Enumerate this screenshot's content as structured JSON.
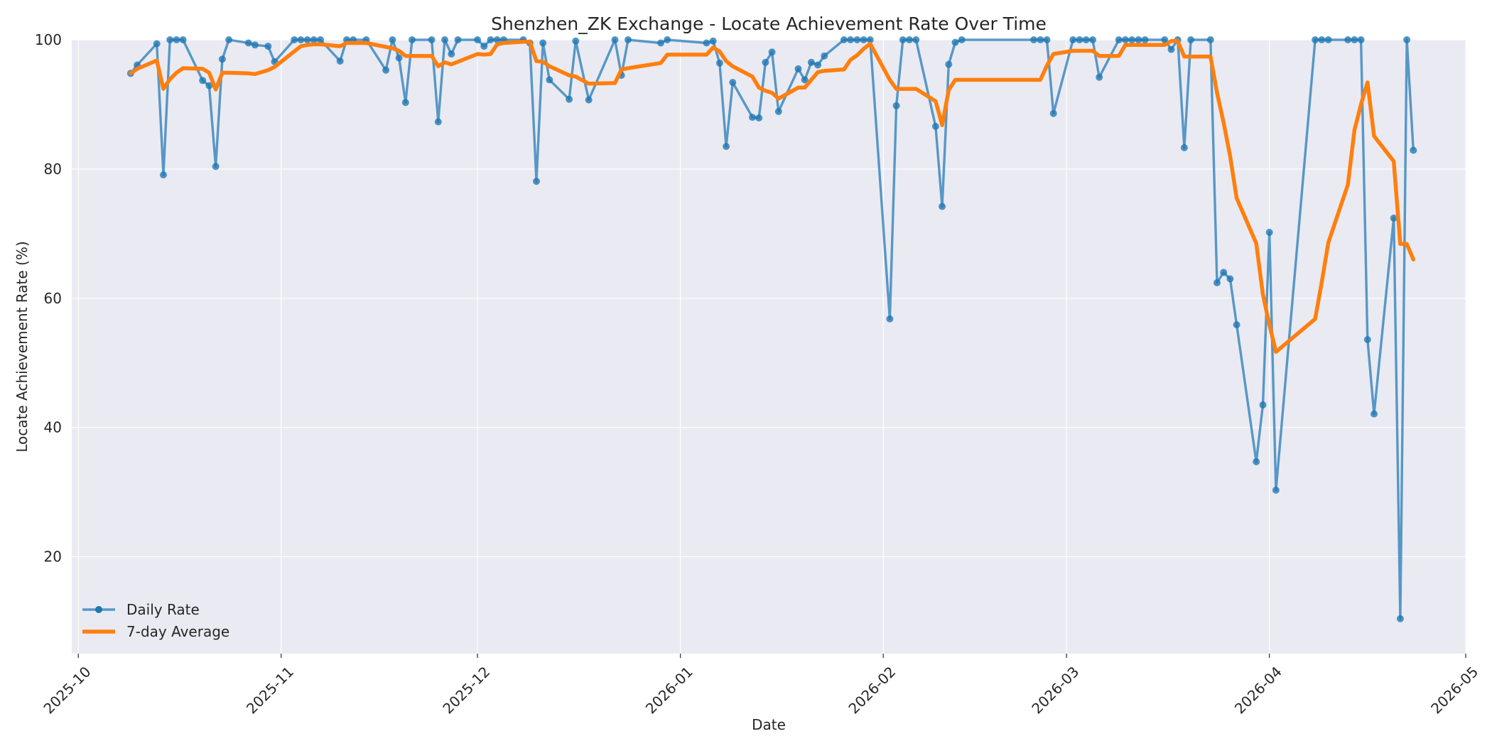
{
  "chart_data": {
    "type": "line",
    "title": "Shenzhen_ZK Exchange - Locate Achievement Rate Over Time",
    "xlabel": "Date",
    "ylabel": "Locate Achievement Rate (%)",
    "xlim": [
      "2025-09-30",
      "2026-05-01"
    ],
    "ylim": [
      5,
      100
    ],
    "x_ticks": [
      "2025-10",
      "2025-11",
      "2025-12",
      "2026-01",
      "2026-02",
      "2026-03",
      "2026-04",
      "2026-05"
    ],
    "y_ticks": [
      20,
      40,
      60,
      80,
      100
    ],
    "grid": true,
    "legend_position": "lower-left",
    "colors": {
      "daily": "#1f77b4",
      "average": "#ff7f0e",
      "plot_background": "#eaeaf2",
      "grid": "#ffffff",
      "text": "#262626"
    },
    "series": [
      {
        "name": "Daily Rate",
        "style": "line-with-markers",
        "points": [
          [
            "2025-10-09",
            94.8
          ],
          [
            "2025-10-10",
            96.1
          ],
          [
            "2025-10-13",
            99.4
          ],
          [
            "2025-10-14",
            79.1
          ],
          [
            "2025-10-15",
            100
          ],
          [
            "2025-10-16",
            100
          ],
          [
            "2025-10-17",
            100
          ],
          [
            "2025-10-20",
            93.7
          ],
          [
            "2025-10-21",
            92.9
          ],
          [
            "2025-10-22",
            80.4
          ],
          [
            "2025-10-23",
            97.0
          ],
          [
            "2025-10-24",
            100
          ],
          [
            "2025-10-27",
            99.5
          ],
          [
            "2025-10-28",
            99.2
          ],
          [
            "2025-10-30",
            99.0
          ],
          [
            "2025-10-31",
            96.6
          ],
          [
            "2025-11-03",
            100
          ],
          [
            "2025-11-04",
            100
          ],
          [
            "2025-11-05",
            100
          ],
          [
            "2025-11-06",
            100
          ],
          [
            "2025-11-07",
            100
          ],
          [
            "2025-11-10",
            96.7
          ],
          [
            "2025-11-11",
            100
          ],
          [
            "2025-11-12",
            100
          ],
          [
            "2025-11-14",
            100
          ],
          [
            "2025-11-17",
            95.3
          ],
          [
            "2025-11-18",
            100
          ],
          [
            "2025-11-19",
            97.2
          ],
          [
            "2025-11-20",
            90.3
          ],
          [
            "2025-11-21",
            100
          ],
          [
            "2025-11-24",
            100
          ],
          [
            "2025-11-25",
            87.3
          ],
          [
            "2025-11-26",
            100
          ],
          [
            "2025-11-27",
            97.8
          ],
          [
            "2025-11-28",
            100
          ],
          [
            "2025-12-01",
            100
          ],
          [
            "2025-12-02",
            99.0
          ],
          [
            "2025-12-03",
            100
          ],
          [
            "2025-12-04",
            100
          ],
          [
            "2025-12-05",
            100
          ],
          [
            "2025-12-08",
            100
          ],
          [
            "2025-12-09",
            99.5
          ],
          [
            "2025-12-10",
            78.1
          ],
          [
            "2025-12-11",
            99.5
          ],
          [
            "2025-12-12",
            93.8
          ],
          [
            "2025-12-15",
            90.8
          ],
          [
            "2025-12-16",
            99.8
          ],
          [
            "2025-12-18",
            90.7
          ],
          [
            "2025-12-22",
            100
          ],
          [
            "2025-12-23",
            94.5
          ],
          [
            "2025-12-24",
            100
          ],
          [
            "2025-12-29",
            99.5
          ],
          [
            "2025-12-30",
            100
          ],
          [
            "2026-01-05",
            99.5
          ],
          [
            "2026-01-06",
            99.8
          ],
          [
            "2026-01-07",
            96.4
          ],
          [
            "2026-01-08",
            83.5
          ],
          [
            "2026-01-09",
            93.4
          ],
          [
            "2026-01-12",
            88.0
          ],
          [
            "2026-01-13",
            87.9
          ],
          [
            "2026-01-14",
            96.5
          ],
          [
            "2026-01-15",
            98.1
          ],
          [
            "2026-01-16",
            88.9
          ],
          [
            "2026-01-19",
            95.5
          ],
          [
            "2026-01-20",
            93.8
          ],
          [
            "2026-01-21",
            96.5
          ],
          [
            "2026-01-22",
            96.1
          ],
          [
            "2026-01-23",
            97.5
          ],
          [
            "2026-01-26",
            100
          ],
          [
            "2026-01-27",
            100
          ],
          [
            "2026-01-28",
            100
          ],
          [
            "2026-01-29",
            100
          ],
          [
            "2026-01-30",
            100
          ],
          [
            "2026-02-02",
            56.8
          ],
          [
            "2026-02-03",
            89.8
          ],
          [
            "2026-02-04",
            100
          ],
          [
            "2026-02-05",
            100
          ],
          [
            "2026-02-06",
            100
          ],
          [
            "2026-02-09",
            86.6
          ],
          [
            "2026-02-10",
            74.2
          ],
          [
            "2026-02-11",
            96.2
          ],
          [
            "2026-02-12",
            99.6
          ],
          [
            "2026-02-13",
            100
          ],
          [
            "2026-02-24",
            100
          ],
          [
            "2026-02-25",
            100
          ],
          [
            "2026-02-26",
            100
          ],
          [
            "2026-02-27",
            88.6
          ],
          [
            "2026-03-02",
            100
          ],
          [
            "2026-03-03",
            100
          ],
          [
            "2026-03-04",
            100
          ],
          [
            "2026-03-05",
            100
          ],
          [
            "2026-03-06",
            94.2
          ],
          [
            "2026-03-09",
            100
          ],
          [
            "2026-03-10",
            100
          ],
          [
            "2026-03-11",
            100
          ],
          [
            "2026-03-12",
            100
          ],
          [
            "2026-03-13",
            100
          ],
          [
            "2026-03-16",
            100
          ],
          [
            "2026-03-17",
            98.5
          ],
          [
            "2026-03-18",
            100
          ],
          [
            "2026-03-19",
            83.3
          ],
          [
            "2026-03-20",
            100
          ],
          [
            "2026-03-23",
            100
          ],
          [
            "2026-03-24",
            62.4
          ],
          [
            "2026-03-25",
            64.0
          ],
          [
            "2026-03-26",
            63.0
          ],
          [
            "2026-03-27",
            55.9
          ],
          [
            "2026-03-30",
            34.7
          ],
          [
            "2026-03-31",
            43.5
          ],
          [
            "2026-04-01",
            70.2
          ],
          [
            "2026-04-02",
            30.3
          ],
          [
            "2026-04-08",
            100
          ],
          [
            "2026-04-09",
            100
          ],
          [
            "2026-04-10",
            100
          ],
          [
            "2026-04-13",
            100
          ],
          [
            "2026-04-14",
            100
          ],
          [
            "2026-04-15",
            100
          ],
          [
            "2026-04-16",
            53.6
          ],
          [
            "2026-04-17",
            42.1
          ],
          [
            "2026-04-20",
            72.4
          ],
          [
            "2026-04-21",
            10.4
          ],
          [
            "2026-04-22",
            100
          ],
          [
            "2026-04-23",
            82.9
          ]
        ]
      },
      {
        "name": "7-day Average",
        "style": "thick-line",
        "points": [
          [
            "2025-10-09",
            94.8
          ],
          [
            "2025-10-10",
            95.5
          ],
          [
            "2025-10-13",
            96.8
          ],
          [
            "2025-10-14",
            92.4
          ],
          [
            "2025-10-15",
            93.9
          ],
          [
            "2025-10-16",
            94.9
          ],
          [
            "2025-10-17",
            95.6
          ],
          [
            "2025-10-20",
            95.5
          ],
          [
            "2025-10-21",
            94.9
          ],
          [
            "2025-10-22",
            92.3
          ],
          [
            "2025-10-23",
            94.9
          ],
          [
            "2025-10-24",
            94.9
          ],
          [
            "2025-10-27",
            94.8
          ],
          [
            "2025-10-28",
            94.7
          ],
          [
            "2025-10-30",
            95.3
          ],
          [
            "2025-10-31",
            95.8
          ],
          [
            "2025-11-03",
            98.2
          ],
          [
            "2025-11-04",
            99.0
          ],
          [
            "2025-11-05",
            99.2
          ],
          [
            "2025-11-06",
            99.3
          ],
          [
            "2025-11-07",
            99.3
          ],
          [
            "2025-11-10",
            99.0
          ],
          [
            "2025-11-11",
            99.5
          ],
          [
            "2025-11-12",
            99.5
          ],
          [
            "2025-11-14",
            99.5
          ],
          [
            "2025-11-17",
            98.9
          ],
          [
            "2025-11-18",
            98.7
          ],
          [
            "2025-11-19",
            98.3
          ],
          [
            "2025-11-20",
            97.5
          ],
          [
            "2025-11-21",
            97.5
          ],
          [
            "2025-11-24",
            97.5
          ],
          [
            "2025-11-25",
            95.9
          ],
          [
            "2025-11-26",
            96.5
          ],
          [
            "2025-11-27",
            96.2
          ],
          [
            "2025-11-28",
            96.6
          ],
          [
            "2025-12-01",
            97.8
          ],
          [
            "2025-12-02",
            97.7
          ],
          [
            "2025-12-03",
            97.8
          ],
          [
            "2025-12-04",
            99.3
          ],
          [
            "2025-12-05",
            99.5
          ],
          [
            "2025-12-08",
            99.7
          ],
          [
            "2025-12-09",
            99.7
          ],
          [
            "2025-12-10",
            96.7
          ],
          [
            "2025-12-11",
            96.6
          ],
          [
            "2025-12-12",
            95.9
          ],
          [
            "2025-12-15",
            94.5
          ],
          [
            "2025-12-16",
            94.3
          ],
          [
            "2025-12-18",
            93.2
          ],
          [
            "2025-12-22",
            93.3
          ],
          [
            "2025-12-23",
            95.4
          ],
          [
            "2025-12-24",
            95.6
          ],
          [
            "2025-12-29",
            96.4
          ],
          [
            "2025-12-30",
            97.7
          ],
          [
            "2026-01-05",
            97.7
          ],
          [
            "2026-01-06",
            98.8
          ],
          [
            "2026-01-07",
            98.2
          ],
          [
            "2026-01-08",
            96.7
          ],
          [
            "2026-01-09",
            95.9
          ],
          [
            "2026-01-12",
            94.3
          ],
          [
            "2026-01-13",
            92.6
          ],
          [
            "2026-01-14",
            92.1
          ],
          [
            "2026-01-15",
            91.8
          ],
          [
            "2026-01-16",
            90.9
          ],
          [
            "2026-01-19",
            92.6
          ],
          [
            "2026-01-20",
            92.6
          ],
          [
            "2026-01-21",
            93.8
          ],
          [
            "2026-01-22",
            95.0
          ],
          [
            "2026-01-23",
            95.2
          ],
          [
            "2026-01-26",
            95.4
          ],
          [
            "2026-01-27",
            96.9
          ],
          [
            "2026-01-28",
            97.6
          ],
          [
            "2026-01-29",
            98.6
          ],
          [
            "2026-01-30",
            99.4
          ],
          [
            "2026-02-02",
            93.8
          ],
          [
            "2026-02-03",
            92.4
          ],
          [
            "2026-02-04",
            92.4
          ],
          [
            "2026-02-05",
            92.4
          ],
          [
            "2026-02-06",
            92.4
          ],
          [
            "2026-02-09",
            90.5
          ],
          [
            "2026-02-10",
            86.8
          ],
          [
            "2026-02-11",
            92.2
          ],
          [
            "2026-02-12",
            93.8
          ],
          [
            "2026-02-13",
            93.8
          ],
          [
            "2026-02-24",
            93.8
          ],
          [
            "2026-02-25",
            93.8
          ],
          [
            "2026-02-26",
            96.0
          ],
          [
            "2026-02-27",
            97.8
          ],
          [
            "2026-03-02",
            98.3
          ],
          [
            "2026-03-03",
            98.3
          ],
          [
            "2026-03-04",
            98.3
          ],
          [
            "2026-03-05",
            98.3
          ],
          [
            "2026-03-06",
            97.5
          ],
          [
            "2026-03-09",
            97.5
          ],
          [
            "2026-03-10",
            99.2
          ],
          [
            "2026-03-11",
            99.2
          ],
          [
            "2026-03-12",
            99.2
          ],
          [
            "2026-03-13",
            99.2
          ],
          [
            "2026-03-16",
            99.2
          ],
          [
            "2026-03-17",
            99.8
          ],
          [
            "2026-03-18",
            99.8
          ],
          [
            "2026-03-19",
            97.4
          ],
          [
            "2026-03-20",
            97.4
          ],
          [
            "2026-03-23",
            97.4
          ],
          [
            "2026-03-24",
            91.8
          ],
          [
            "2026-03-25",
            87.2
          ],
          [
            "2026-03-26",
            82.0
          ],
          [
            "2026-03-27",
            75.5
          ],
          [
            "2026-03-30",
            68.5
          ],
          [
            "2026-03-31",
            60.6
          ],
          [
            "2026-04-01",
            55.9
          ],
          [
            "2026-04-02",
            51.7
          ],
          [
            "2026-04-08",
            56.8
          ],
          [
            "2026-04-09",
            62.5
          ],
          [
            "2026-04-10",
            68.6
          ],
          [
            "2026-04-13",
            77.6
          ],
          [
            "2026-04-14",
            86.0
          ],
          [
            "2026-04-15",
            90.0
          ],
          [
            "2026-04-16",
            93.4
          ],
          [
            "2026-04-17",
            85.1
          ],
          [
            "2026-04-20",
            81.2
          ],
          [
            "2026-04-21",
            68.4
          ],
          [
            "2026-04-22",
            68.4
          ],
          [
            "2026-04-23",
            66.0
          ]
        ]
      }
    ]
  }
}
